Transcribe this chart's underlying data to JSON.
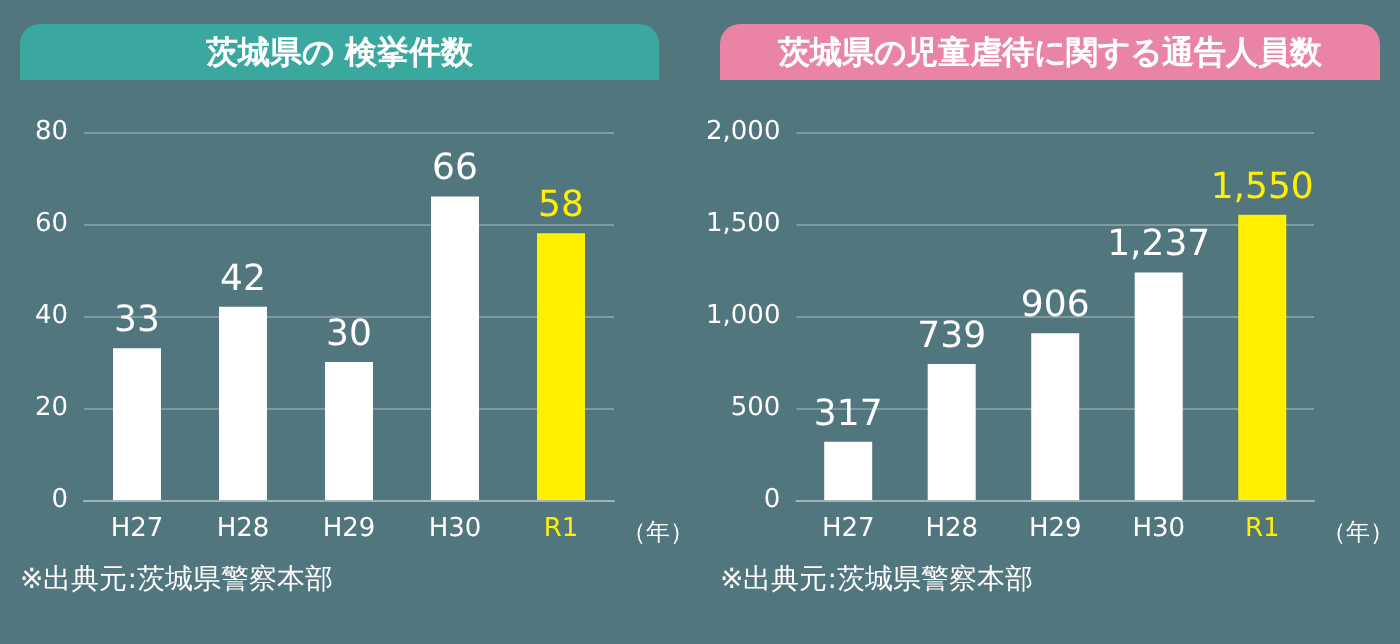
{
  "chart_data": [
    {
      "type": "bar",
      "title": "茨城県の 検挙件数",
      "categories": [
        "H27",
        "H28",
        "H29",
        "H30",
        "R1"
      ],
      "values": [
        33,
        42,
        30,
        66,
        58
      ],
      "colors": [
        "#ffffff",
        "#ffffff",
        "#ffffff",
        "#ffffff",
        "#fff000"
      ],
      "xlabel": "（年）",
      "ylim": [
        0,
        80
      ],
      "yticks": [
        0,
        20,
        40,
        60,
        80
      ],
      "grid": "y",
      "data_labels": true,
      "annotations": [
        "※出典元:茨城県警察本部"
      ]
    },
    {
      "type": "bar",
      "title": "茨城県の児童虐待に関する通告人員数",
      "categories": [
        "H27",
        "H28",
        "H29",
        "H30",
        "R1"
      ],
      "values": [
        317,
        739,
        906,
        1237,
        1550
      ],
      "colors": [
        "#ffffff",
        "#ffffff",
        "#ffffff",
        "#ffffff",
        "#fff000"
      ],
      "value_labels": [
        "317",
        "739",
        "906",
        "1,237",
        "1,550"
      ],
      "xlabel": "（年）",
      "ylim": [
        0,
        2000
      ],
      "yticks": [
        0,
        500,
        {
          "value": 1000,
          "label": "1,000"
        },
        {
          "value": 1500,
          "label": "1,500"
        },
        {
          "value": 2000,
          "label": "2,000"
        }
      ],
      "grid": "y",
      "annotations": [
        "※出典元:茨城県警察本部"
      ]
    }
  ]
}
